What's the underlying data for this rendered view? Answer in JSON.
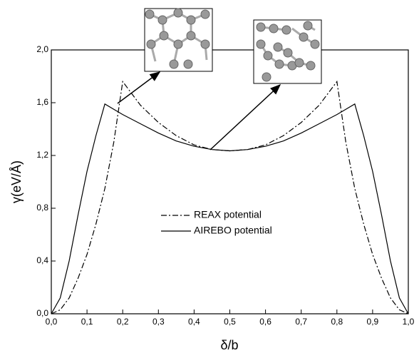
{
  "chart_data": {
    "type": "line",
    "x_label": "δ/b",
    "y_label": "γ(eV/Å)",
    "x": [
      0,
      0.025,
      0.05,
      0.075,
      0.1,
      0.125,
      0.15,
      0.175,
      0.2,
      0.25,
      0.3,
      0.35,
      0.4,
      0.45,
      0.5,
      0.55,
      0.6,
      0.65,
      0.7,
      0.75,
      0.8,
      0.825,
      0.85,
      0.875,
      0.9,
      0.925,
      0.95,
      0.975,
      1.0
    ],
    "series": [
      {
        "name": "REAX potential",
        "color": "#000000",
        "dash": "8 3 2 3",
        "values": [
          0,
          0.03,
          0.12,
          0.27,
          0.45,
          0.68,
          0.95,
          1.3,
          1.76,
          1.58,
          1.45,
          1.35,
          1.28,
          1.245,
          1.235,
          1.245,
          1.28,
          1.35,
          1.45,
          1.58,
          1.76,
          1.3,
          0.95,
          0.68,
          0.45,
          0.27,
          0.12,
          0.03,
          0
        ]
      },
      {
        "name": "AIREBO potential",
        "color": "#000000",
        "values": [
          0,
          0.12,
          0.4,
          0.75,
          1.08,
          1.35,
          1.59,
          1.55,
          1.51,
          1.44,
          1.37,
          1.31,
          1.27,
          1.245,
          1.235,
          1.245,
          1.27,
          1.31,
          1.37,
          1.44,
          1.51,
          1.55,
          1.59,
          1.35,
          1.08,
          0.75,
          0.4,
          0.12,
          0
        ]
      }
    ],
    "xlim": [
      0,
      1.0
    ],
    "ylim": [
      0,
      2.0
    ],
    "xticks": [
      {
        "value": 0,
        "label": "0,0"
      },
      {
        "value": 0.1,
        "label": "0,1"
      },
      {
        "value": 0.2,
        "label": "0,2"
      },
      {
        "value": 0.3,
        "label": "0,3"
      },
      {
        "value": 0.4,
        "label": "0,4"
      },
      {
        "value": 0.5,
        "label": "0,5"
      },
      {
        "value": 0.6,
        "label": "0,6"
      },
      {
        "value": 0.7,
        "label": "0,7"
      },
      {
        "value": 0.8,
        "label": "0,8"
      },
      {
        "value": 0.9,
        "label": "0,9"
      },
      {
        "value": 1.0,
        "label": "1,0"
      }
    ],
    "yticks": [
      {
        "value": 0,
        "label": "0,0"
      },
      {
        "value": 0.4,
        "label": "0,4"
      },
      {
        "value": 0.8,
        "label": "0,8"
      },
      {
        "value": 1.2,
        "label": "1,2"
      },
      {
        "value": 1.6,
        "label": "1,6"
      },
      {
        "value": 2.0,
        "label": "2,0"
      }
    ]
  }
}
